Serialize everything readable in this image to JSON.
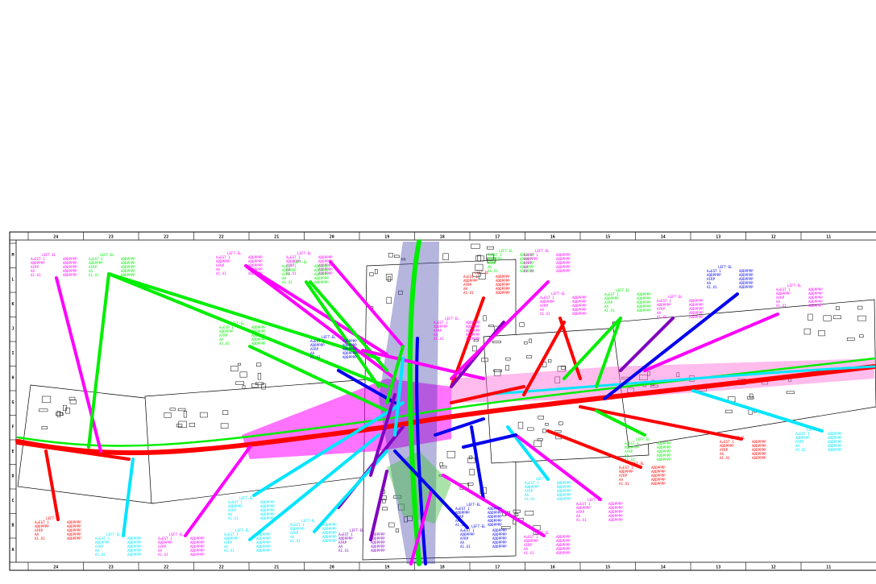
{
  "drawing": {
    "grid_top_labels": [
      "24",
      "23",
      "22",
      "22",
      "21",
      "20",
      "19",
      "18",
      "17",
      "16",
      "15",
      "14",
      "13",
      "12",
      "11"
    ],
    "grid_bottom_labels": [
      "24",
      "23",
      "22",
      "22",
      "21",
      "20",
      "19",
      "18",
      "17",
      "16",
      "15",
      "14",
      "13",
      "12",
      "11"
    ],
    "grid_left_labels": [
      "M",
      "L",
      "K",
      "J",
      "I",
      "H",
      "G",
      "F",
      "E",
      "D",
      "C",
      "B",
      "A"
    ],
    "colors": {
      "red": "#ff0000",
      "green": "#00ee00",
      "magenta": "#ff00ff",
      "cyan": "#00e5ff",
      "blue": "#0000ee",
      "purple": "#8000c0",
      "linework": "#000000",
      "border": "#000000"
    },
    "legend_text": {
      "title": "LEFT-EL",
      "row1": "A=EST 1",
      "row2": "ADDPPPP",
      "row3": "AFRP",
      "row4": "AA",
      "row5": "A1.X1"
    }
  }
}
